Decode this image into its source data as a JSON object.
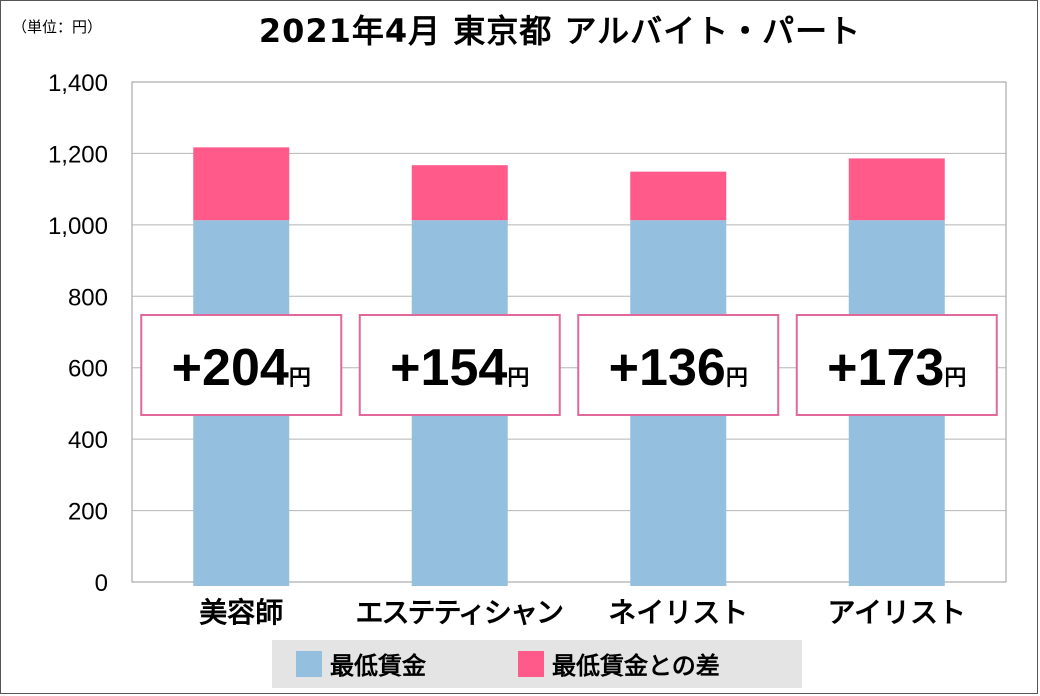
{
  "unit_label": "（単位：円）",
  "chart_data": {
    "type": "bar",
    "stacked": true,
    "title": "2021年4月 東京都 アルバイト・パート",
    "categories": [
      "美容師",
      "エステティシャン",
      "ネイリスト",
      "アイリスト"
    ],
    "series": [
      {
        "name": "最低賃金",
        "values": [
          1013,
          1013,
          1013,
          1013
        ],
        "color": "#94bfdf"
      },
      {
        "name": "最低賃金との差",
        "values": [
          204,
          154,
          136,
          173
        ],
        "color": "#ff5a8a"
      }
    ],
    "callouts": [
      "+204",
      "+154",
      "+136",
      "+173"
    ],
    "callout_unit": "円",
    "yticks": [
      "0",
      "200",
      "400",
      "600",
      "800",
      "1,000",
      "1,200",
      "1,400"
    ],
    "ylim": [
      0,
      1400
    ],
    "grid": true,
    "legend_position": "bottom"
  }
}
